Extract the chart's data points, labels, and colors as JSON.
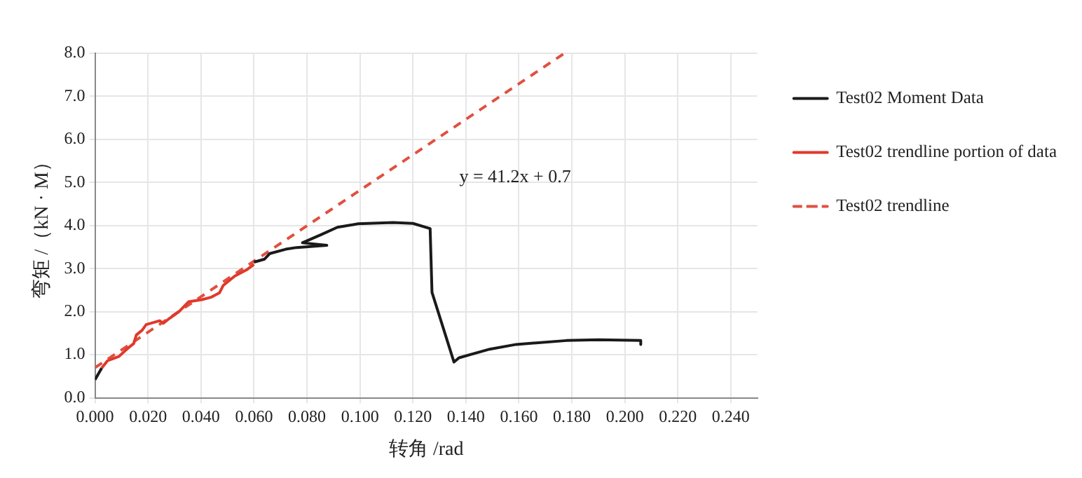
{
  "chart_data": {
    "type": "line",
    "xlabel": "转角 /rad",
    "ylabel": "弯矩 /（kN · M）",
    "annotations": [
      "y = 41.2x + 0.7"
    ],
    "xlim": [
      0,
      0.25
    ],
    "xticks": [
      {
        "value": 0,
        "label": "0.000"
      },
      {
        "value": 0.02,
        "label": "0.020"
      },
      {
        "value": 0.04,
        "label": "0.040"
      },
      {
        "value": 0.06,
        "label": "0.060"
      },
      {
        "value": 0.08,
        "label": "0.080"
      },
      {
        "value": 0.1,
        "label": "0.100"
      },
      {
        "value": 0.12,
        "label": "0.120"
      },
      {
        "value": 0.14,
        "label": "0.140"
      },
      {
        "value": 0.16,
        "label": "0.160"
      },
      {
        "value": 0.18,
        "label": "0.180"
      },
      {
        "value": 0.2,
        "label": "0.200"
      },
      {
        "value": 0.22,
        "label": "0.220"
      },
      {
        "value": 0.24,
        "label": "0.240"
      }
    ],
    "ylim": [
      0,
      8
    ],
    "yticks": [
      {
        "value": 0,
        "label": "0.0"
      },
      {
        "value": 1,
        "label": "1.0"
      },
      {
        "value": 2,
        "label": "2.0"
      },
      {
        "value": 3,
        "label": "3.0"
      },
      {
        "value": 4,
        "label": "4.0"
      },
      {
        "value": 5,
        "label": "5.0"
      },
      {
        "value": 6,
        "label": "6.0"
      },
      {
        "value": 7,
        "label": "7.0"
      },
      {
        "value": 8,
        "label": "8.0"
      }
    ],
    "grid": true,
    "legend": "right",
    "marker": "none",
    "series": [
      {
        "name": "Test02 Moment Data",
        "color": "#1a1a1a",
        "line_style": "solid",
        "x": [
          0,
          0.0025,
          0.004,
          0.06,
          0.064,
          0.066,
          0.072,
          0.0761,
          0.0875,
          0.0783,
          0.085,
          0.0915,
          0.0993,
          0.1125,
          0.12,
          0.1265,
          0.1272,
          0.1355,
          0.1374,
          0.149,
          0.159,
          0.178,
          0.19,
          0.206,
          0.206
        ],
        "values": [
          0.42,
          0.69,
          null,
          3.15,
          3.22,
          3.35,
          3.45,
          3.49,
          3.54,
          3.6,
          3.78,
          3.96,
          4.04,
          4.07,
          4.05,
          3.93,
          2.45,
          0.83,
          0.93,
          1.13,
          1.24,
          1.33,
          1.35,
          1.33,
          1.24
        ]
      },
      {
        "name": "Test02 trendline portion of data",
        "color": "#e0392b",
        "line_style": "solid",
        "x": [
          0.0025,
          0.0047,
          0.009,
          0.012,
          0.0146,
          0.0156,
          0.0178,
          0.0193,
          0.0244,
          0.0258,
          0.028,
          0.0317,
          0.0353,
          0.0404,
          0.044,
          0.047,
          0.0484,
          0.0528,
          0.0572,
          0.06
        ],
        "values": [
          0.69,
          0.86,
          0.96,
          1.13,
          1.26,
          1.46,
          1.57,
          1.7,
          1.79,
          1.73,
          1.84,
          2.0,
          2.23,
          2.28,
          2.34,
          2.44,
          2.61,
          2.83,
          2.97,
          3.1
        ]
      },
      {
        "name": "Test02 trendline",
        "color": "#e05040",
        "line_style": "dashed",
        "x": [
          0,
          0.1772
        ],
        "values": [
          0.7,
          8.0
        ]
      }
    ]
  }
}
